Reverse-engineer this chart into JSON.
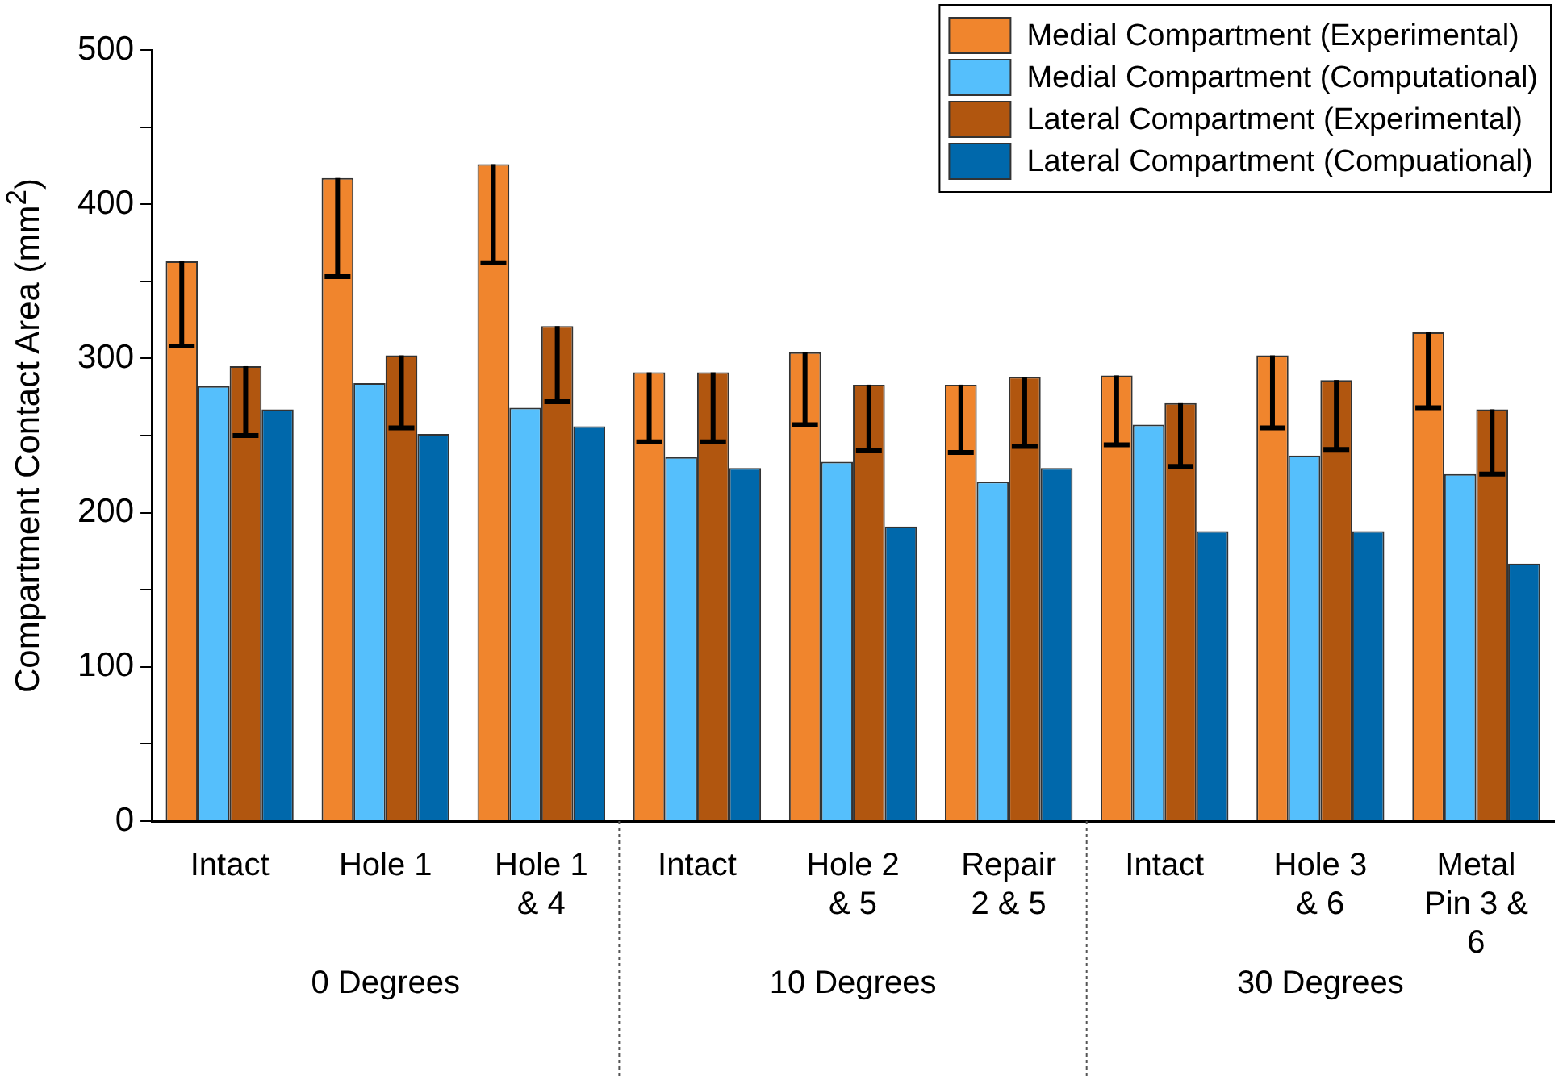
{
  "chart_data": {
    "type": "bar",
    "ylabel": "Compartment Contact Area (mm$^{2}$)",
    "categories": [
      "Intact",
      "Hole 1",
      "Hole 1\n& 4",
      "Intact",
      "Hole 2\n& 5",
      "Repair\n2 & 5",
      "Intact",
      "Hole 3\n& 6",
      "Metal\nPin 3 &\n6"
    ],
    "series": [
      {
        "name": "Medial Compartment (Experimental)",
        "color": "#f0852d",
        "values": [
          363,
          417,
          426,
          291,
          304,
          283,
          289,
          302,
          317
        ],
        "errors": [
          [
            308,
            363
          ],
          [
            353,
            417
          ],
          [
            362,
            426
          ],
          [
            246,
            291
          ],
          [
            257,
            304
          ],
          [
            239,
            283
          ],
          [
            244,
            289
          ],
          [
            255,
            302
          ],
          [
            268,
            317
          ]
        ]
      },
      {
        "name": "Medial Compartment (Computational)",
        "color": "#55bffc",
        "values": [
          282,
          284,
          268,
          236,
          233,
          220,
          257,
          237,
          225
        ]
      },
      {
        "name": "Lateral Compartment (Experimental)",
        "color": "#b1560f",
        "values": [
          295,
          302,
          321,
          291,
          283,
          288,
          271,
          286,
          267
        ],
        "errors": [
          [
            250,
            295
          ],
          [
            255,
            302
          ],
          [
            272,
            321
          ],
          [
            246,
            291
          ],
          [
            240,
            283
          ],
          [
            243,
            288
          ],
          [
            230,
            271
          ],
          [
            241,
            286
          ],
          [
            225,
            267
          ]
        ]
      },
      {
        "name": "Lateral Compartment (Compuational)",
        "color": "#0068ab",
        "values": [
          267,
          251,
          256,
          229,
          191,
          229,
          188,
          188,
          167
        ]
      }
    ],
    "ylim": [
      0,
      500
    ],
    "yticks": [
      0,
      {
        "value": 50,
        "label": null
      },
      100,
      {
        "value": 150,
        "label": null
      },
      200,
      {
        "value": 250,
        "label": null
      },
      300,
      {
        "value": 350,
        "label": null
      },
      400,
      {
        "value": 450,
        "label": null
      },
      500
    ],
    "annotations": [
      "0 Degrees",
      "10 Degrees",
      "30 Degrees"
    ],
    "legend": "top right",
    "grid": false
  }
}
